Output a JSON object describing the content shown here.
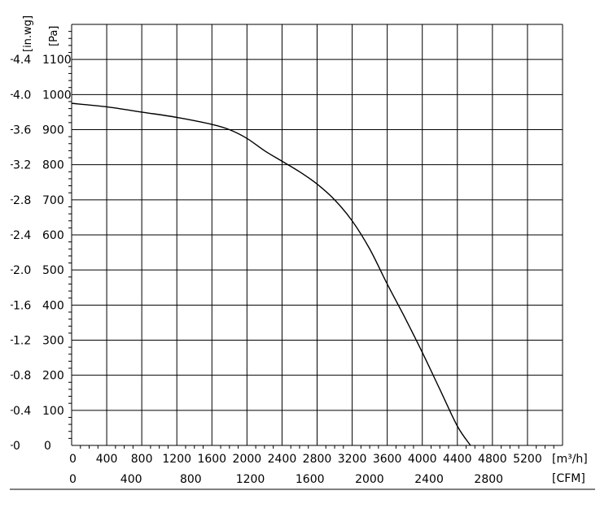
{
  "chart_data": {
    "type": "line",
    "title": "",
    "x": [
      0,
      400,
      800,
      1200,
      1600,
      1800,
      2000,
      2200,
      2400,
      2600,
      2800,
      3000,
      3200,
      3400,
      3600,
      3800,
      4000,
      4200,
      4400,
      4550
    ],
    "series": [
      {
        "name": "",
        "values": [
          975,
          965,
          950,
          935,
          915,
          900,
          875,
          840,
          810,
          780,
          745,
          700,
          640,
          560,
          460,
          365,
          265,
          160,
          55,
          0
        ]
      }
    ],
    "xlabel_primary": "[m³/h]",
    "xlabel_secondary": "[CFM]",
    "ylabel_primary": "[Pa]",
    "ylabel_secondary": "[in.wg]",
    "x_ticks_primary": [
      "0",
      "400",
      "800",
      "1200",
      "1600",
      "2000",
      "2400",
      "2800",
      "3200",
      "3600",
      "4000",
      "4400",
      "4800",
      "5200"
    ],
    "x_ticks_secondary": [
      "0",
      "400",
      "800",
      "1200",
      "1600",
      "2000",
      "2400",
      "2800"
    ],
    "x_ticks_secondary_values": [
      0,
      400,
      800,
      1200,
      1600,
      2000,
      2400,
      2800
    ],
    "y_ticks_primary": [
      "0",
      "100",
      "200",
      "300",
      "400",
      "500",
      "600",
      "700",
      "800",
      "900",
      "1000",
      "1100"
    ],
    "y_ticks_secondary": [
      "0",
      "0.4",
      "0.8",
      "1.2",
      "1.6",
      "2.0",
      "2.4",
      "2.8",
      "3.2",
      "3.6",
      "4.0",
      "4.4"
    ],
    "xlim": [
      0,
      5600
    ],
    "ylim": [
      0,
      1200
    ],
    "grid": true,
    "legend": "none",
    "colors": {
      "line": "#000000",
      "grid": "#000000",
      "background": "#ffffff"
    }
  }
}
